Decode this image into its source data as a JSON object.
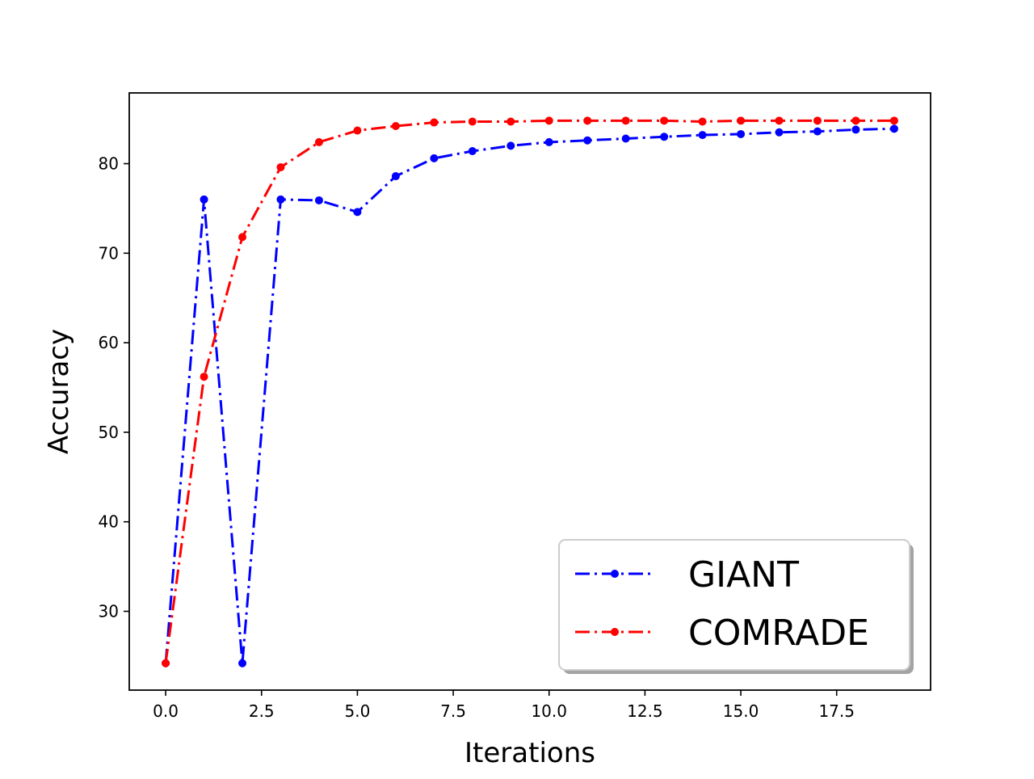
{
  "chart_data": {
    "type": "line",
    "title": "",
    "xlabel": "Iterations",
    "ylabel": "Accuracy",
    "xlim": [
      -0.95,
      19.95
    ],
    "ylim": [
      21.2,
      87.9
    ],
    "x_ticks": [
      0.0,
      2.5,
      5.0,
      7.5,
      10.0,
      12.5,
      15.0,
      17.5
    ],
    "x_tick_labels": [
      "0.0",
      "2.5",
      "5.0",
      "7.5",
      "10.0",
      "12.5",
      "15.0",
      "17.5"
    ],
    "y_ticks": [
      30,
      40,
      50,
      60,
      70,
      80
    ],
    "y_tick_labels": [
      "30",
      "40",
      "50",
      "60",
      "70",
      "80"
    ],
    "grid": false,
    "legend_position": "lower-right",
    "x": [
      0,
      1,
      2,
      3,
      4,
      5,
      6,
      7,
      8,
      9,
      10,
      11,
      12,
      13,
      14,
      15,
      16,
      17,
      18,
      19
    ],
    "series": [
      {
        "name": "GIANT",
        "color": "#0000ff",
        "line_style": "dash-dot",
        "marker": "circle",
        "values": [
          24.2,
          76.0,
          24.2,
          76.0,
          75.9,
          74.6,
          78.6,
          80.6,
          81.4,
          82.0,
          82.4,
          82.6,
          82.8,
          83.0,
          83.2,
          83.3,
          83.5,
          83.6,
          83.8,
          83.9
        ]
      },
      {
        "name": "COMRADE",
        "color": "#ff0000",
        "line_style": "dash-dot",
        "marker": "circle",
        "values": [
          24.2,
          56.2,
          71.8,
          79.6,
          82.4,
          83.7,
          84.2,
          84.6,
          84.7,
          84.7,
          84.8,
          84.8,
          84.8,
          84.8,
          84.7,
          84.8,
          84.8,
          84.8,
          84.8,
          84.8
        ]
      }
    ]
  }
}
